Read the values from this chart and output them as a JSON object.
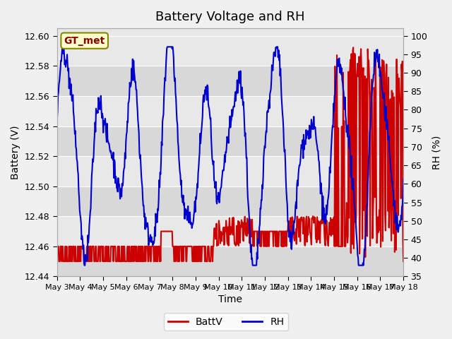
{
  "title": "Battery Voltage and RH",
  "xlabel": "Time",
  "ylabel_left": "Battery (V)",
  "ylabel_right": "RH (%)",
  "legend_label": "GT_met",
  "series_labels": [
    "BattV",
    "RH"
  ],
  "series_colors": [
    "#cc0000",
    "#0000cc"
  ],
  "ylim_left": [
    12.44,
    12.605
  ],
  "ylim_right": [
    35,
    102
  ],
  "yticks_left": [
    12.44,
    12.46,
    12.48,
    12.5,
    12.52,
    12.54,
    12.56,
    12.58,
    12.6
  ],
  "yticks_right": [
    35,
    40,
    45,
    50,
    55,
    60,
    65,
    70,
    75,
    80,
    85,
    90,
    95,
    100
  ],
  "xtick_labels": [
    "May 3",
    "May 4",
    "May 5",
    "May 6",
    "May 7",
    "May 8",
    "May 9",
    "May 10",
    "May 11",
    "May 12",
    "May 13",
    "May 14",
    "May 15",
    "May 16",
    "May 17",
    "May 18"
  ],
  "n_xticks": 16,
  "background_color": "#f0f0f0",
  "plot_bg_color": "#e8e8e8",
  "band1_color": "#d8d8d8",
  "linewidth": 1.5,
  "title_fontsize": 13,
  "axis_fontsize": 10,
  "tick_fontsize": 9,
  "legend_box_color": "#ffffcc",
  "legend_box_edge": "#888800",
  "legend_text_color": "#880000"
}
